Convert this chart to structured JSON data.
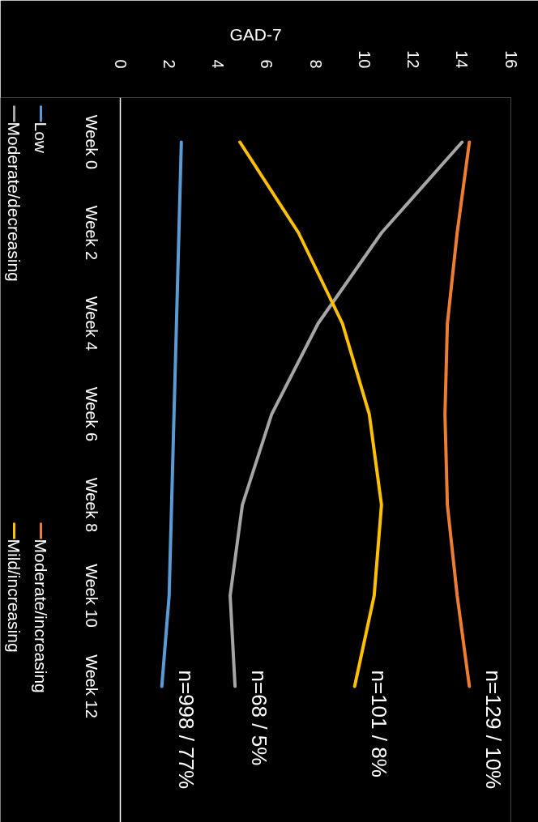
{
  "chart_data": {
    "type": "line",
    "orientation": "horizontal",
    "xlabel": "GAD-7",
    "categories": [
      "Week 0",
      "Week 2",
      "Week 4",
      "Week 6",
      "Week 8",
      "Week 10",
      "Week 12"
    ],
    "xlim": [
      0,
      16
    ],
    "xticks": [
      0,
      2,
      4,
      6,
      8,
      10,
      12,
      14,
      16
    ],
    "grid": false,
    "legend": "left",
    "series": [
      {
        "name": "Low",
        "color": "#5b9bd5",
        "values": [
          2.5,
          2.4,
          2.3,
          2.2,
          2.1,
          2.0,
          1.7
        ]
      },
      {
        "name": "Moderate/decreasing",
        "color": "#a5a5a5",
        "values": [
          14.0,
          10.7,
          8.1,
          6.2,
          5.0,
          4.5,
          4.7
        ]
      },
      {
        "name": "Moderate/increasing",
        "color": "#ed7d31",
        "values": [
          14.3,
          13.8,
          13.4,
          13.3,
          13.4,
          13.8,
          14.3
        ]
      },
      {
        "name": "Mild/increasing",
        "color": "#ffc000",
        "values": [
          4.9,
          7.3,
          9.1,
          10.2,
          10.7,
          10.4,
          9.6
        ]
      }
    ],
    "annotations": [
      {
        "text": "n=129 / 10%",
        "x": 14.3,
        "y": "Week 12"
      },
      {
        "text": "n=101 / 8%",
        "x": 9.6,
        "y": "Week 12"
      },
      {
        "text": "n=68 / 5%",
        "x": 4.7,
        "y": "Week 12"
      },
      {
        "text": "n=998 / 77%",
        "x": 1.7,
        "y": "Week 12"
      }
    ]
  }
}
